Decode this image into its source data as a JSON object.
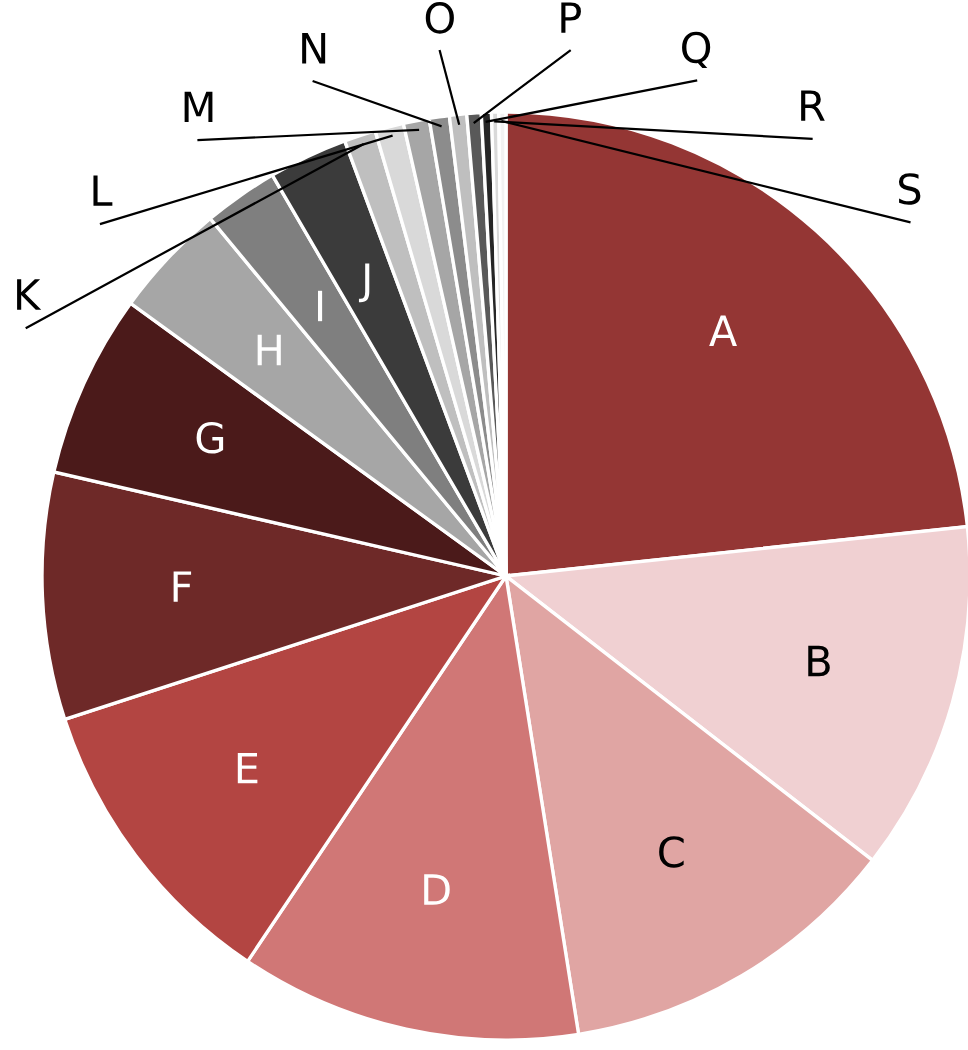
{
  "chart_data": {
    "type": "pie",
    "categories": [
      "A",
      "B",
      "C",
      "D",
      "E",
      "F",
      "G",
      "H",
      "I",
      "J",
      "K",
      "L",
      "M",
      "N",
      "O",
      "P",
      "Q",
      "R",
      "S"
    ],
    "values": [
      23.3,
      12.2,
      12,
      11.9,
      10.6,
      8.6,
      6.4,
      4,
      2.6,
      2.75,
      1.1,
      1.0,
      0.9,
      0.7,
      0.6,
      0.5,
      0.35,
      0.25,
      0.25
    ],
    "colors": [
      "#943634",
      "#f0d0d2",
      "#e0a5a3",
      "#d07776",
      "#b34542",
      "#6e2928",
      "#4b1a1a",
      "#a6a6a6",
      "#7f7f7f",
      "#3b3b3b",
      "#bfbfbf",
      "#d9d9d9",
      "#a6a6a6",
      "#8c8c8c",
      "#bfbfbf",
      "#595959",
      "#262626",
      "#d9d9d9",
      "#f2f2f2"
    ],
    "legend": false
  }
}
